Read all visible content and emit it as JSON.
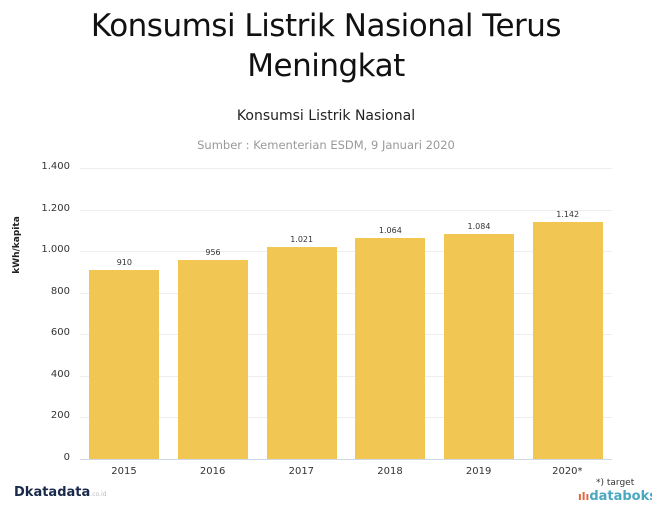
{
  "headline": {
    "line1": "Konsumsi Listrik Nasional Terus",
    "line2": "Meningkat"
  },
  "chart_data": {
    "type": "bar",
    "title": "Konsumsi Listrik Nasional",
    "subtitle": "Sumber : Kementerian ESDM, 9 Januari 2020",
    "categories": [
      "2015",
      "2016",
      "2017",
      "2018",
      "2019",
      "2020*"
    ],
    "values": [
      910,
      956,
      1021,
      1064,
      1084,
      1142
    ],
    "value_labels": [
      "910",
      "956",
      "1.021",
      "1.064",
      "1.084",
      "1.142"
    ],
    "xlabel": "",
    "ylabel": "kWh/kapita",
    "ylim": [
      0,
      1400
    ],
    "yticks": [
      "0",
      "200",
      "400",
      "600",
      "800",
      "1.000",
      "1.200",
      "1.400"
    ],
    "grid": true,
    "bar_color": "#f1c653",
    "note": "*) target"
  },
  "footer": {
    "left_logo": "katadata",
    "left_logo_domain": ".co.id",
    "right_note": "*) target",
    "right_logo": "databoks"
  }
}
